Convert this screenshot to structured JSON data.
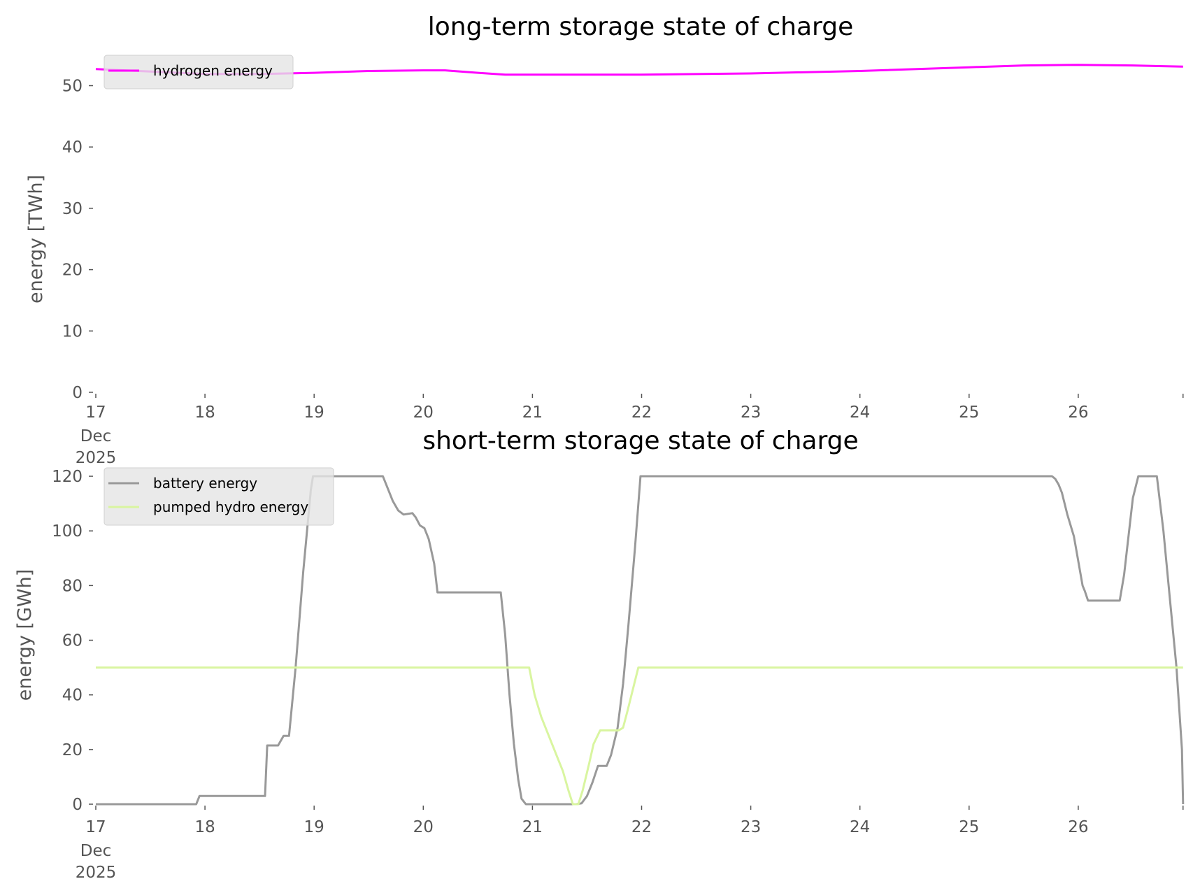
{
  "chart_data": [
    {
      "type": "line",
      "title": "long-term storage state of charge",
      "xlabel": "",
      "ylabel": "energy [TWh]",
      "x_unit": "days since 17 Dec 2025 00:00",
      "xlim": [
        0,
        9.96
      ],
      "ylim": [
        0,
        55
      ],
      "grid": false,
      "legend_placement": "upper-left",
      "x_ticks": [
        {
          "value": 0,
          "label": "17",
          "sub": [
            "Dec",
            "2025"
          ]
        },
        {
          "value": 1,
          "label": "18"
        },
        {
          "value": 2,
          "label": "19"
        },
        {
          "value": 3,
          "label": "20"
        },
        {
          "value": 4,
          "label": "21"
        },
        {
          "value": 5,
          "label": "22"
        },
        {
          "value": 6,
          "label": "23"
        },
        {
          "value": 7,
          "label": "24"
        },
        {
          "value": 8,
          "label": "25"
        },
        {
          "value": 9,
          "label": "26"
        }
      ],
      "y_ticks": [
        0,
        10,
        20,
        30,
        40,
        50
      ],
      "series": [
        {
          "name": "hydrogen energy",
          "color": "#ff00ff",
          "x": [
            0,
            0.5,
            1,
            1.5,
            2,
            2.5,
            3,
            3.2,
            3.5,
            3.75,
            5,
            6,
            7,
            8,
            8.5,
            9,
            9.5,
            9.96
          ],
          "y": [
            52.7,
            52.3,
            51.9,
            51.9,
            52.1,
            52.4,
            52.5,
            52.5,
            52.1,
            51.8,
            51.8,
            52.0,
            52.4,
            53.0,
            53.3,
            53.4,
            53.3,
            53.1
          ]
        }
      ]
    },
    {
      "type": "line",
      "title": "short-term storage state of charge",
      "xlabel": "",
      "ylabel": "energy [GWh]",
      "x_unit": "days since 17 Dec 2025 00:00",
      "xlim": [
        0,
        9.96
      ],
      "ylim": [
        0,
        121
      ],
      "grid": false,
      "legend_placement": "upper-left",
      "x_ticks": [
        {
          "value": 0,
          "label": "17",
          "sub": [
            "Dec",
            "2025"
          ]
        },
        {
          "value": 1,
          "label": "18"
        },
        {
          "value": 2,
          "label": "19"
        },
        {
          "value": 3,
          "label": "20"
        },
        {
          "value": 4,
          "label": "21"
        },
        {
          "value": 5,
          "label": "22"
        },
        {
          "value": 6,
          "label": "23"
        },
        {
          "value": 7,
          "label": "24"
        },
        {
          "value": 8,
          "label": "25"
        },
        {
          "value": 9,
          "label": "26"
        }
      ],
      "y_ticks": [
        0,
        20,
        40,
        60,
        80,
        100,
        120
      ],
      "series": [
        {
          "name": "battery energy",
          "color": "#999999",
          "x": [
            0,
            0.92,
            0.95,
            0.97,
            1.55,
            1.57,
            1.67,
            1.72,
            1.77,
            1.83,
            1.9,
            1.97,
            1.99,
            2.63,
            2.67,
            2.72,
            2.77,
            2.82,
            2.9,
            2.93,
            2.97,
            3.01,
            3.05,
            3.1,
            3.13,
            3.71,
            3.75,
            3.79,
            3.83,
            3.87,
            3.9,
            3.94,
            4.4,
            4.45,
            4.5,
            4.55,
            4.6,
            4.68,
            4.72,
            4.78,
            4.83,
            4.88,
            4.94,
            4.99,
            8.76,
            8.79,
            8.82,
            8.85,
            8.9,
            8.96,
            9.04,
            9.06,
            9.09,
            9.38,
            9.42,
            9.5,
            9.55,
            9.72,
            9.78,
            9.84,
            9.9,
            9.95,
            9.96
          ],
          "y": [
            0,
            0,
            3,
            3,
            3,
            21.5,
            21.5,
            25,
            25,
            50,
            85,
            115,
            120,
            120,
            116,
            111,
            107.5,
            106,
            106.5,
            105,
            102,
            101,
            97,
            88,
            77.5,
            77.5,
            62,
            40,
            22,
            9,
            2,
            0,
            0,
            0.3,
            3,
            8,
            14,
            14,
            18,
            28,
            44,
            66,
            94,
            120,
            120,
            119,
            117,
            114,
            106,
            98,
            80,
            78,
            74.5,
            74.5,
            84,
            112,
            120,
            120,
            100,
            75,
            50,
            20,
            0
          ]
        },
        {
          "name": "pumped hydro energy",
          "color": "#d9f5a0",
          "x": [
            0,
            3.97,
            4.02,
            4.08,
            4.15,
            4.22,
            4.28,
            4.33,
            4.37,
            4.42,
            4.46,
            4.52,
            4.56,
            4.62,
            4.79,
            4.83,
            4.87,
            4.92,
            4.97,
            9.96
          ],
          "y": [
            50,
            50,
            40,
            32,
            25,
            18,
            12,
            5,
            0,
            0,
            5,
            15,
            22,
            27,
            27,
            28,
            34,
            42,
            50,
            50
          ]
        }
      ]
    }
  ]
}
